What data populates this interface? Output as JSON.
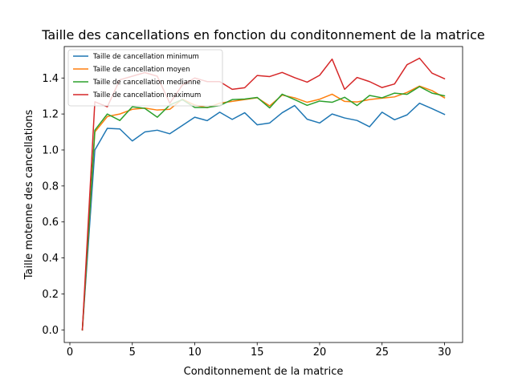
{
  "chart_data": {
    "type": "line",
    "title": "Taille des cancellations en fonction du conditonnement de la matrice",
    "xlabel": "Conditonnement de la matrice",
    "ylabel": "Taille motenne des cancellations",
    "xlim": [
      -0.45,
      31.45
    ],
    "ylim": [
      -0.07,
      1.575
    ],
    "xticks": [
      0,
      5,
      10,
      15,
      20,
      25,
      30
    ],
    "yticks": [
      0.0,
      0.2,
      0.4,
      0.6,
      0.8,
      1.0,
      1.2,
      1.4
    ],
    "ytick_labels": [
      "0.0",
      "0.2",
      "0.4",
      "0.6",
      "0.8",
      "1.0",
      "1.2",
      "1.4"
    ],
    "grid": false,
    "legend_position": "top-left",
    "x": [
      1,
      2,
      3,
      4,
      5,
      6,
      7,
      8,
      9,
      10,
      11,
      12,
      13,
      14,
      15,
      16,
      17,
      18,
      19,
      20,
      21,
      22,
      23,
      24,
      25,
      26,
      27,
      28,
      29,
      30
    ],
    "series": [
      {
        "name": "Taille de cancellation minimum",
        "color": "#1f77b4",
        "values": [
          0.0,
          1.0,
          1.12,
          1.117,
          1.05,
          1.1,
          1.11,
          1.09,
          1.136,
          1.182,
          1.163,
          1.21,
          1.17,
          1.207,
          1.14,
          1.15,
          1.207,
          1.247,
          1.171,
          1.15,
          1.2,
          1.178,
          1.164,
          1.129,
          1.21,
          1.168,
          1.195,
          1.26,
          1.23,
          1.198
        ]
      },
      {
        "name": "Taille de cancellation moyen",
        "color": "#ff7f0e",
        "values": [
          0.0,
          1.1,
          1.186,
          1.2,
          1.226,
          1.233,
          1.222,
          1.226,
          1.282,
          1.25,
          1.235,
          1.26,
          1.27,
          1.28,
          1.29,
          1.245,
          1.305,
          1.29,
          1.265,
          1.282,
          1.31,
          1.27,
          1.267,
          1.28,
          1.288,
          1.295,
          1.32,
          1.355,
          1.33,
          1.29
        ]
      },
      {
        "name": "Taille de cancellation medianne",
        "color": "#2ca02c",
        "values": [
          0.0,
          1.11,
          1.2,
          1.164,
          1.24,
          1.231,
          1.182,
          1.25,
          1.28,
          1.236,
          1.236,
          1.247,
          1.28,
          1.283,
          1.292,
          1.234,
          1.31,
          1.28,
          1.248,
          1.272,
          1.265,
          1.293,
          1.247,
          1.303,
          1.29,
          1.316,
          1.309,
          1.352,
          1.316,
          1.301
        ]
      },
      {
        "name": "Taille de cancellation maximum",
        "color": "#d62728",
        "values": [
          0.0,
          1.268,
          1.24,
          1.39,
          1.41,
          1.43,
          1.41,
          1.26,
          1.36,
          1.4,
          1.38,
          1.38,
          1.337,
          1.346,
          1.414,
          1.408,
          1.431,
          1.402,
          1.377,
          1.415,
          1.505,
          1.337,
          1.403,
          1.38,
          1.347,
          1.367,
          1.474,
          1.51,
          1.427,
          1.396
        ]
      }
    ]
  }
}
